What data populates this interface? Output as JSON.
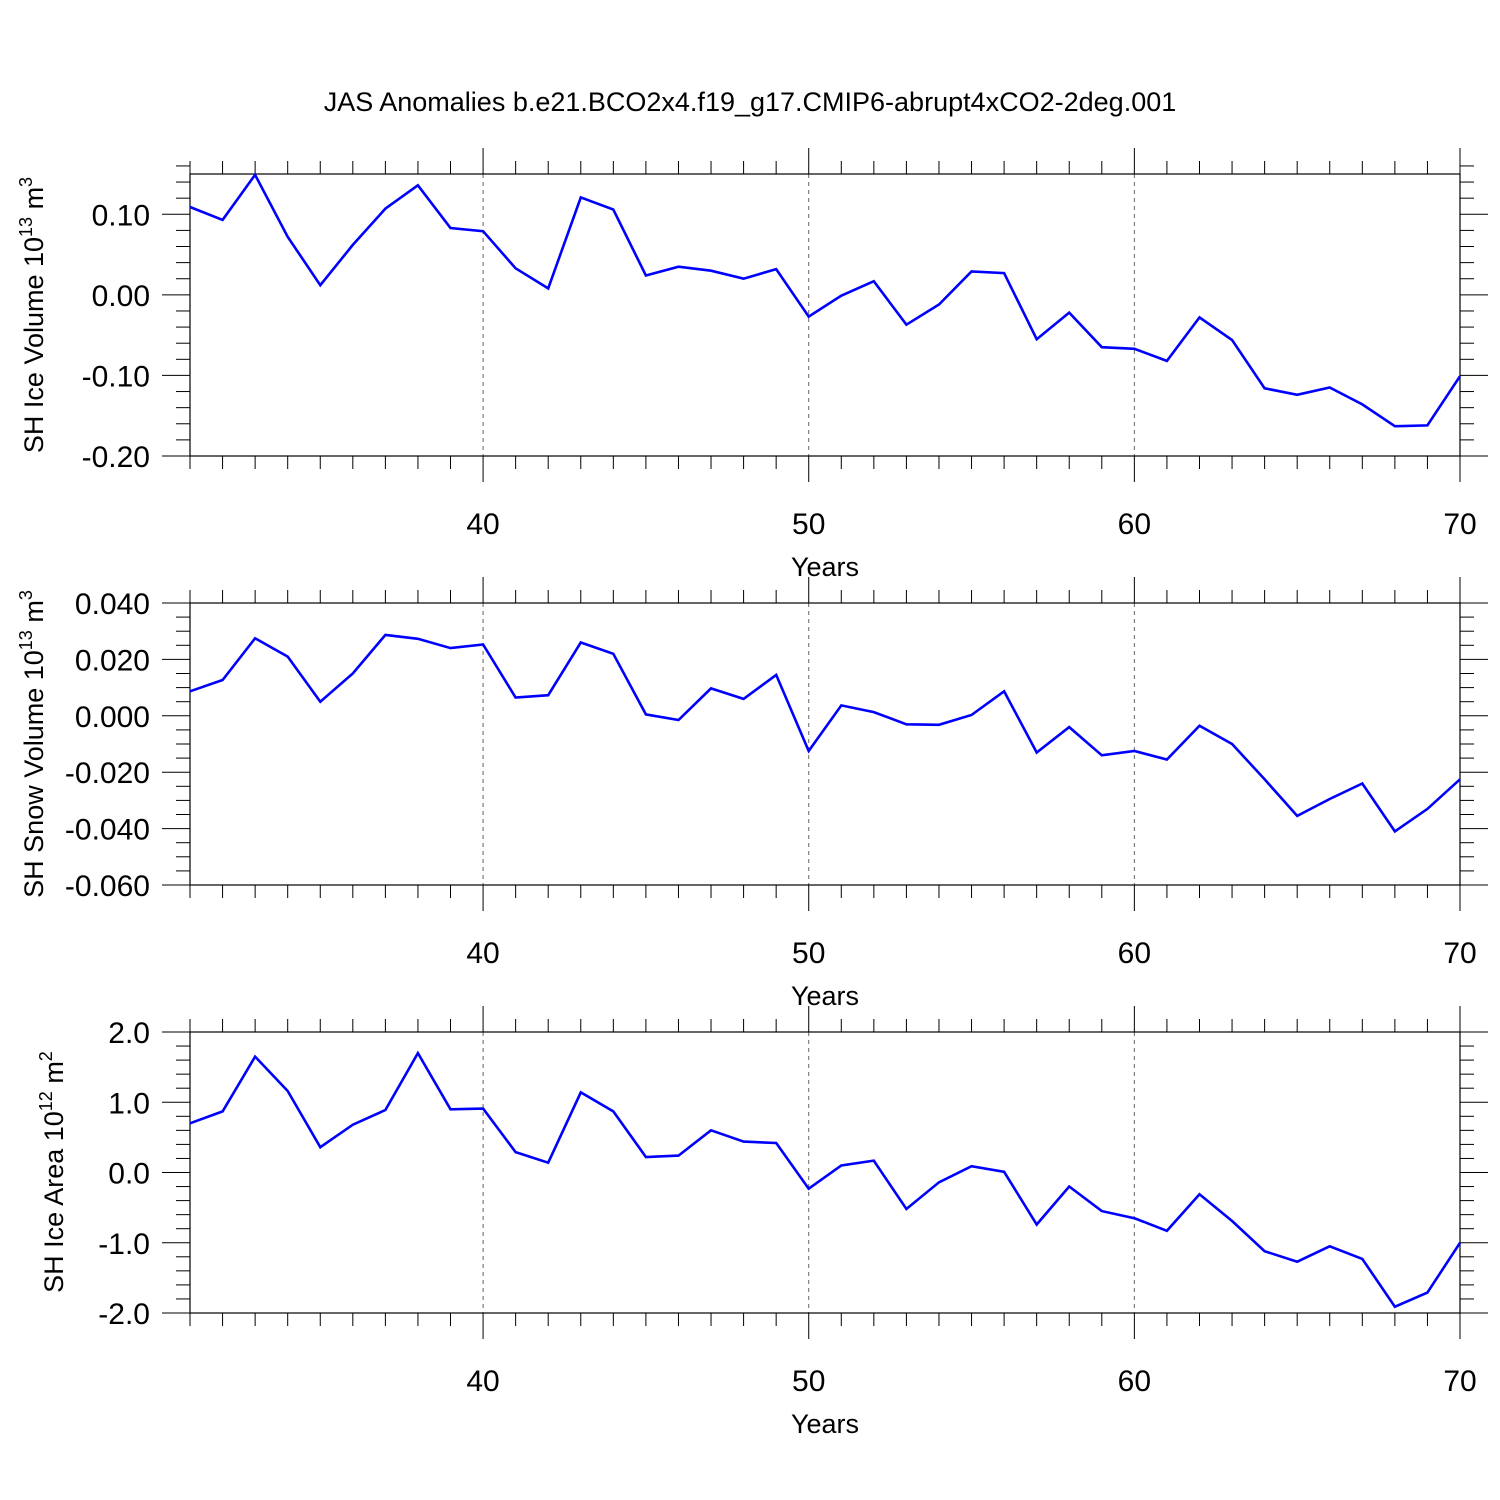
{
  "figure": {
    "title": "JAS Anomalies b.e21.BCO2x4.f19_g17.CMIP6-abrupt4xCO2-2deg.001",
    "line_color": "#0000ff"
  },
  "chart_data": [
    {
      "type": "line",
      "ylabel_main": "SH Ice Volume 10",
      "ylabel_exp": "13",
      "ylabel_unit": " m",
      "ylabel_unit_exp": "3",
      "xlabel": "Years",
      "xlim": [
        31,
        70
      ],
      "ylim": [
        -0.2,
        0.15
      ],
      "xticks": [
        40,
        50,
        60,
        70
      ],
      "xtick_labels": [
        "40",
        "50",
        "60",
        "70"
      ],
      "yticks": [
        -0.2,
        -0.1,
        0.0,
        0.1
      ],
      "ytick_labels": [
        "-0.20",
        "-0.10",
        "0.00",
        "0.10"
      ],
      "y_minor_step": 0.02,
      "grid": "dashed vertical at major x ticks",
      "series": [
        {
          "x": [
            31,
            32,
            33,
            34,
            35,
            36,
            37,
            38,
            39,
            40,
            41,
            42,
            43,
            44,
            45,
            46,
            47,
            48,
            49,
            50,
            51,
            52,
            53,
            54,
            55,
            56,
            57,
            58,
            59,
            60,
            61,
            62,
            63,
            64,
            65,
            66,
            67,
            68,
            69,
            70
          ],
          "values": [
            0.109,
            0.093,
            0.149,
            0.072,
            0.012,
            0.062,
            0.107,
            0.136,
            0.083,
            0.079,
            0.033,
            0.008,
            0.121,
            0.106,
            0.024,
            0.035,
            0.03,
            0.02,
            0.032,
            -0.027,
            -0.001,
            0.017,
            -0.037,
            -0.012,
            0.029,
            0.027,
            -0.055,
            -0.022,
            -0.065,
            -0.067,
            -0.082,
            -0.028,
            -0.056,
            -0.116,
            -0.124,
            -0.115,
            -0.136,
            -0.163,
            -0.162,
            -0.101
          ]
        }
      ]
    },
    {
      "type": "line",
      "ylabel_main": "SH Snow Volume 10",
      "ylabel_exp": "13",
      "ylabel_unit": " m",
      "ylabel_unit_exp": "3",
      "xlabel": "Years",
      "xlim": [
        31,
        70
      ],
      "ylim": [
        -0.06,
        0.04
      ],
      "xticks": [
        40,
        50,
        60,
        70
      ],
      "xtick_labels": [
        "40",
        "50",
        "60",
        "70"
      ],
      "yticks": [
        -0.06,
        -0.04,
        -0.02,
        0.0,
        0.02,
        0.04
      ],
      "ytick_labels": [
        "-0.060",
        "-0.040",
        "-0.020",
        "0.000",
        "0.020",
        "0.040"
      ],
      "y_minor_step": 0.005,
      "grid": "dashed vertical at major x ticks",
      "series": [
        {
          "x": [
            31,
            32,
            33,
            34,
            35,
            36,
            37,
            38,
            39,
            40,
            41,
            42,
            43,
            44,
            45,
            46,
            47,
            48,
            49,
            50,
            51,
            52,
            53,
            54,
            55,
            56,
            57,
            58,
            59,
            60,
            61,
            62,
            63,
            64,
            65,
            66,
            67,
            68,
            69,
            70
          ],
          "values": [
            0.0087,
            0.0127,
            0.0275,
            0.021,
            0.005,
            0.015,
            0.0287,
            0.0273,
            0.024,
            0.0253,
            0.0065,
            0.0073,
            0.026,
            0.022,
            0.0005,
            -0.0015,
            0.0097,
            0.006,
            0.0145,
            -0.0125,
            0.0037,
            0.0013,
            -0.003,
            -0.0032,
            0.0003,
            0.0087,
            -0.013,
            -0.004,
            -0.014,
            -0.0125,
            -0.0155,
            -0.0035,
            -0.01,
            -0.0225,
            -0.0355,
            -0.0295,
            -0.024,
            -0.041,
            -0.033,
            -0.0225
          ]
        }
      ]
    },
    {
      "type": "line",
      "ylabel_main": "SH Ice Area 10",
      "ylabel_exp": "12",
      "ylabel_unit": " m",
      "ylabel_unit_exp": "2",
      "xlabel": "Years",
      "xlim": [
        31,
        70
      ],
      "ylim": [
        -2.0,
        2.0
      ],
      "xticks": [
        40,
        50,
        60,
        70
      ],
      "xtick_labels": [
        "40",
        "50",
        "60",
        "70"
      ],
      "yticks": [
        -2.0,
        -1.0,
        0.0,
        1.0,
        2.0
      ],
      "ytick_labels": [
        "-2.0",
        "-1.0",
        "0.0",
        "1.0",
        "2.0"
      ],
      "y_minor_step": 0.2,
      "grid": "dashed vertical at major x ticks",
      "series": [
        {
          "x": [
            31,
            32,
            33,
            34,
            35,
            36,
            37,
            38,
            39,
            40,
            41,
            42,
            43,
            44,
            45,
            46,
            47,
            48,
            49,
            50,
            51,
            52,
            53,
            54,
            55,
            56,
            57,
            58,
            59,
            60,
            61,
            62,
            63,
            64,
            65,
            66,
            67,
            68,
            69,
            70
          ],
          "values": [
            0.7,
            0.87,
            1.65,
            1.16,
            0.36,
            0.68,
            0.89,
            1.7,
            0.9,
            0.91,
            0.29,
            0.14,
            1.14,
            0.87,
            0.22,
            0.24,
            0.6,
            0.44,
            0.42,
            -0.23,
            0.1,
            0.17,
            -0.52,
            -0.14,
            0.09,
            0.01,
            -0.74,
            -0.2,
            -0.55,
            -0.65,
            -0.83,
            -0.31,
            -0.69,
            -1.12,
            -1.27,
            -1.05,
            -1.23,
            -1.91,
            -1.71,
            -1.0
          ]
        }
      ]
    }
  ]
}
